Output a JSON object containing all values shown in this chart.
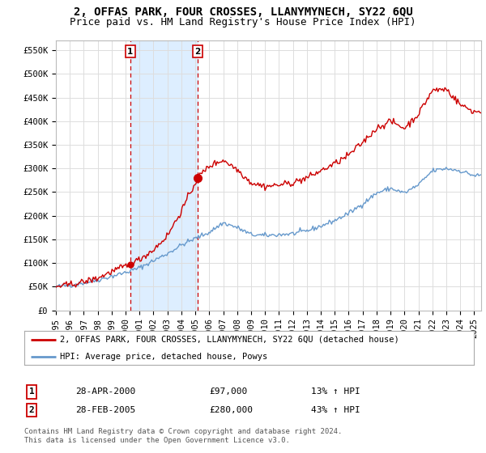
{
  "title": "2, OFFAS PARK, FOUR CROSSES, LLANYMYNECH, SY22 6QU",
  "subtitle": "Price paid vs. HM Land Registry's House Price Index (HPI)",
  "ylabel_ticks": [
    "£0",
    "£50K",
    "£100K",
    "£150K",
    "£200K",
    "£250K",
    "£300K",
    "£350K",
    "£400K",
    "£450K",
    "£500K",
    "£550K"
  ],
  "ytick_values": [
    0,
    50000,
    100000,
    150000,
    200000,
    250000,
    300000,
    350000,
    400000,
    450000,
    500000,
    550000
  ],
  "ylim": [
    0,
    570000
  ],
  "xlim_start": 1995.0,
  "xlim_end": 2025.5,
  "xtick_years": [
    1995,
    1996,
    1997,
    1998,
    1999,
    2000,
    2001,
    2002,
    2003,
    2004,
    2005,
    2006,
    2007,
    2008,
    2009,
    2010,
    2011,
    2012,
    2013,
    2014,
    2015,
    2016,
    2017,
    2018,
    2019,
    2020,
    2021,
    2022,
    2023,
    2024,
    2025
  ],
  "sale1_x": 2000.33,
  "sale1_y": 97000,
  "sale1_label": "1",
  "sale1_vline_color": "#cc0000",
  "sale1_dot_color": "#cc0000",
  "sale2_x": 2005.17,
  "sale2_y": 280000,
  "sale2_label": "2",
  "sale2_vline_color": "#cc0000",
  "sale2_dot_color": "#cc0000",
  "property_line_color": "#cc0000",
  "hpi_line_color": "#6699cc",
  "shade_color": "#ddeeff",
  "legend_property": "2, OFFAS PARK, FOUR CROSSES, LLANYMYNECH, SY22 6QU (detached house)",
  "legend_hpi": "HPI: Average price, detached house, Powys",
  "annotation1_box": "1",
  "annotation1_date": "28-APR-2000",
  "annotation1_price": "£97,000",
  "annotation1_hpi": "13% ↑ HPI",
  "annotation2_box": "2",
  "annotation2_date": "28-FEB-2005",
  "annotation2_price": "£280,000",
  "annotation2_hpi": "43% ↑ HPI",
  "footnote": "Contains HM Land Registry data © Crown copyright and database right 2024.\nThis data is licensed under the Open Government Licence v3.0.",
  "background_color": "#ffffff",
  "grid_color": "#dddddd",
  "title_fontsize": 10,
  "subtitle_fontsize": 9,
  "tick_fontsize": 7.5
}
